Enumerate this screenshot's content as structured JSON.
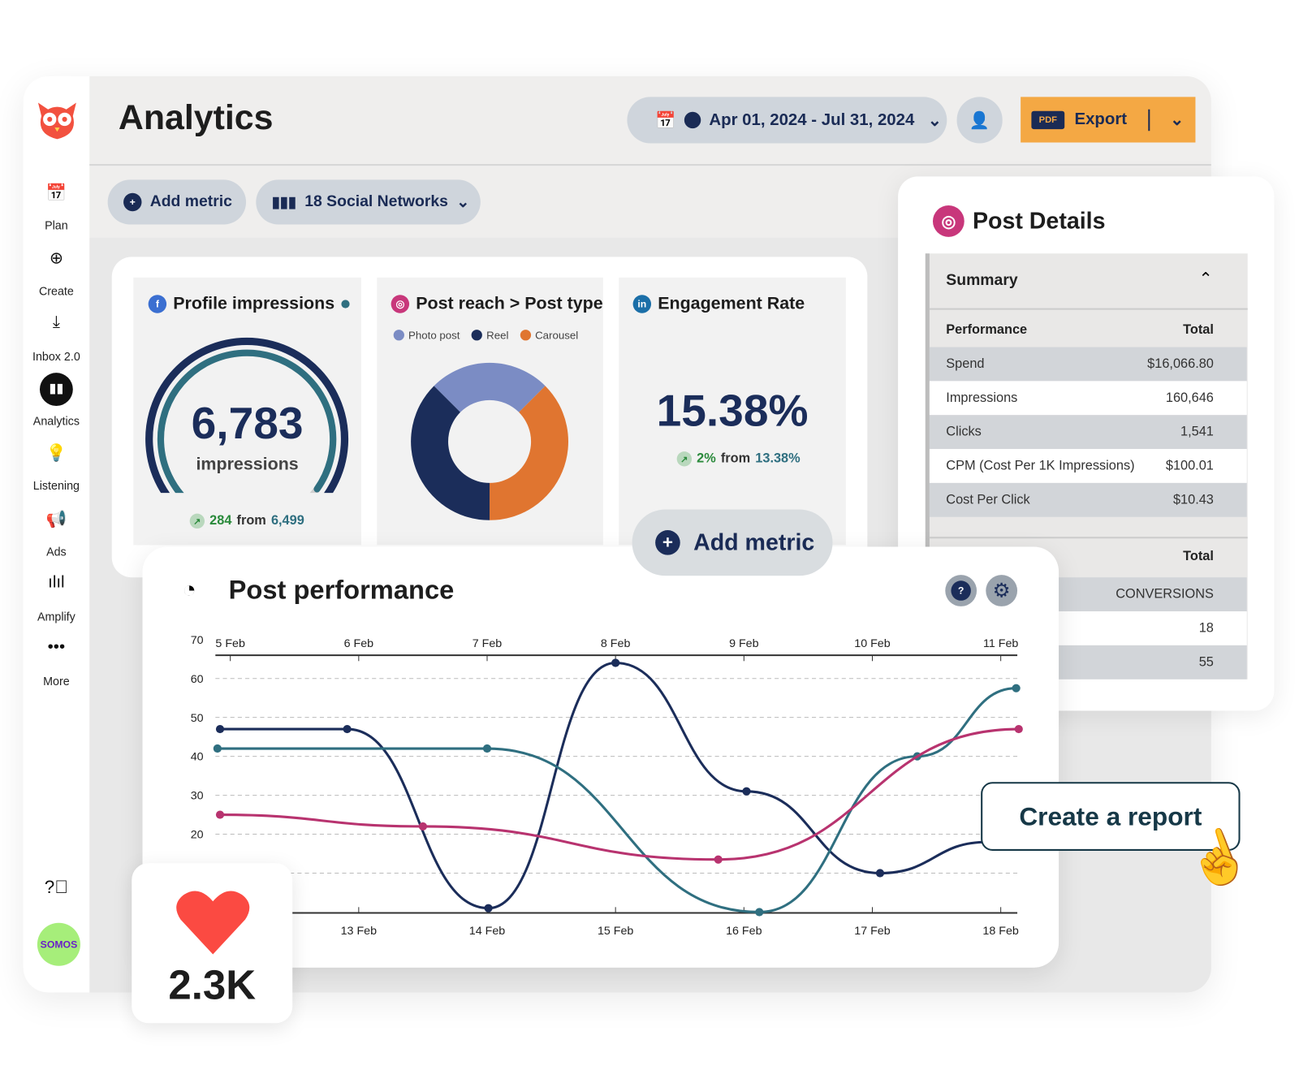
{
  "header": {
    "title": "Analytics",
    "date_range": "Apr 01, 2024 - Jul 31, 2024",
    "export_badge": "PDF",
    "export_label": "Export"
  },
  "toolbar": {
    "add_metric": "Add metric",
    "networks": "18 Social Networks"
  },
  "sidebar": {
    "items": [
      {
        "label": "Plan",
        "icon": "calendar-icon"
      },
      {
        "label": "Create",
        "icon": "plus-circle-icon"
      },
      {
        "label": "Inbox 2.0",
        "icon": "inbox-icon"
      },
      {
        "label": "Analytics",
        "icon": "bar-chart-icon",
        "active": true
      },
      {
        "label": "Listening",
        "icon": "lightbulb-icon"
      },
      {
        "label": "Ads",
        "icon": "megaphone-icon"
      },
      {
        "label": "Amplify",
        "icon": "amplify-icon"
      },
      {
        "label": "More",
        "icon": "more-icon"
      }
    ],
    "avatar": "SOMOS"
  },
  "cards": {
    "impressions": {
      "title": "Profile impressions",
      "value": "6,783",
      "unit": "impressions",
      "delta": "284",
      "from_word": "from",
      "previous": "6,499",
      "fill": 0.96
    },
    "reach": {
      "title": "Post reach > Post type",
      "legend": [
        "Photo post",
        "Reel",
        "Carousel"
      ]
    },
    "engagement": {
      "title": "Engagement Rate",
      "value": "15.38%",
      "delta": "2%",
      "from_word": "from",
      "previous": "13.38%"
    },
    "add_metric": "Add metric"
  },
  "post_details": {
    "title": "Post Details",
    "section": "Summary",
    "col_label": "Performance",
    "col_total": "Total",
    "rows": [
      {
        "label": "Spend",
        "value": "$16,066.80"
      },
      {
        "label": "Impressions",
        "value": "160,646"
      },
      {
        "label": "Clicks",
        "value": "1,541"
      },
      {
        "label": "CPM (Cost Per 1K Impressions)",
        "value": "$100.01"
      },
      {
        "label": "Cost Per Click",
        "value": "$10.43"
      }
    ],
    "second_total": "Total",
    "second_header": "CONVERSIONS",
    "second_rows": [
      "18",
      "55"
    ]
  },
  "performance": {
    "title": "Post performance"
  },
  "likes": {
    "value": "2.3K"
  },
  "cta": {
    "label": "Create a report"
  },
  "colors": {
    "navy": "#1b2d5a",
    "teal": "#2f6f80",
    "pink": "#b8336f",
    "orange": "#e07530",
    "periwinkle": "#7b8cc4",
    "export": "#f4a844",
    "facebook": "#3b6fd1",
    "instagram": "#c8377b",
    "linkedin": "#1b6fa8"
  },
  "chart_data": [
    {
      "type": "pie",
      "legend": [
        "Photo post",
        "Reel",
        "Carousel"
      ],
      "values": [
        25,
        37.5,
        37.5
      ],
      "colors": [
        "#7b8cc4",
        "#1b2d5a",
        "#e07530"
      ]
    },
    {
      "type": "line",
      "title": "Post performance",
      "ylim": [
        0,
        70
      ],
      "yticks": [
        70,
        60,
        50,
        40,
        30,
        20
      ],
      "x_top_labels": [
        "5 Feb",
        "6 Feb",
        "7 Feb",
        "8 Feb",
        "9 Feb",
        "10 Feb",
        "11 Feb"
      ],
      "x_bottom_labels": [
        "13 Feb",
        "14 Feb",
        "15 Feb",
        "16 Feb",
        "17 Feb",
        "18 Feb"
      ],
      "grid": true,
      "series": [
        {
          "color": "#1b2d5a",
          "points": [
            [
              -0.08,
              47
            ],
            [
              0.91,
              47
            ],
            [
              2.01,
              1
            ],
            [
              3.0,
              64
            ],
            [
              4.02,
              31
            ],
            [
              5.06,
              10
            ],
            [
              5.9,
              18
            ]
          ]
        },
        {
          "color": "#2f6f80",
          "points": [
            [
              -0.1,
              42
            ],
            [
              2.0,
              42
            ],
            [
              4.12,
              0
            ],
            [
              5.35,
              40
            ],
            [
              6.12,
              57.5
            ]
          ]
        },
        {
          "color": "#b8336f",
          "points": [
            [
              -0.08,
              25
            ],
            [
              1.5,
              22
            ],
            [
              3.8,
              13.5
            ],
            [
              6.14,
              47
            ]
          ]
        }
      ]
    }
  ]
}
